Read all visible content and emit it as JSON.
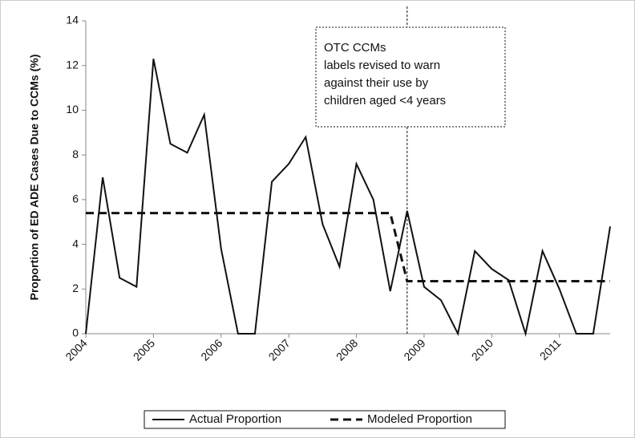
{
  "chart_data": {
    "type": "line",
    "y_label": "Proportion of ED ADE Cases Due to CCMs (%)",
    "x": [
      2004,
      2004.25,
      2004.5,
      2004.75,
      2005,
      2005.25,
      2005.5,
      2005.75,
      2006,
      2006.25,
      2006.5,
      2006.75,
      2007,
      2007.25,
      2007.5,
      2007.75,
      2008,
      2008.25,
      2008.5,
      2008.75,
      2009,
      2009.25,
      2009.5,
      2009.75,
      2010,
      2010.25,
      2010.5,
      2010.75,
      2011,
      2011.25,
      2011.5,
      2011.75
    ],
    "series": [
      {
        "name": "Actual Proportion",
        "color": "#111111",
        "dash": false,
        "values": [
          0,
          7,
          2.5,
          2.1,
          12.3,
          8.5,
          8.1,
          9.8,
          3.8,
          0,
          0,
          6.8,
          7.6,
          8.8,
          4.9,
          3.0,
          7.6,
          6.0,
          1.9,
          5.5,
          2.1,
          1.5,
          0,
          3.7,
          2.9,
          2.4,
          0,
          3.7,
          2.0,
          0,
          0,
          4.8
        ]
      },
      {
        "name": "Modeled Proportion",
        "color": "#111111",
        "dash": true,
        "values": [
          5.4,
          5.4,
          5.4,
          5.4,
          5.4,
          5.4,
          5.4,
          5.4,
          5.4,
          5.4,
          5.4,
          5.4,
          5.4,
          5.4,
          5.4,
          5.4,
          5.4,
          5.4,
          5.4,
          2.35,
          2.35,
          2.35,
          2.35,
          2.35,
          2.35,
          2.35,
          2.35,
          2.35,
          2.35,
          2.35,
          2.35,
          2.35
        ]
      }
    ],
    "xlim": [
      2004,
      2011.75
    ],
    "xticks": [
      2004,
      2005,
      2006,
      2007,
      2008,
      2009,
      2010,
      2011
    ],
    "ylim": [
      0,
      14
    ],
    "yticks": [
      0,
      2,
      4,
      6,
      8,
      10,
      12,
      14
    ],
    "event_x": 2008.75,
    "annotation": [
      "OTC CCMs",
      "labels revised to warn",
      "against their use by",
      "children aged <4 years"
    ],
    "legend": "bottom"
  }
}
